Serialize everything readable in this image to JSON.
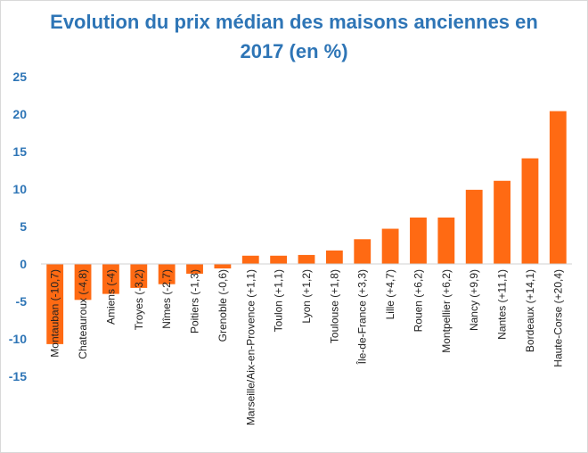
{
  "chart_data": {
    "type": "bar",
    "title_line1": "Evolution du prix médian des maisons anciennes en",
    "title_line2": "2017 (en %)",
    "xlabel": "",
    "ylabel": "",
    "ylim": [
      -15,
      25
    ],
    "yticks": [
      "25",
      "20",
      "15",
      "10",
      "5",
      "0",
      "-5",
      "-10",
      "-15"
    ],
    "ytick_values": [
      25,
      20,
      15,
      10,
      5,
      0,
      -5,
      -10,
      -15
    ],
    "grid": false,
    "bar_color": "#ff6a13",
    "categories": [
      "Montauban (-10,7)",
      "Chateauroux (-4,8)",
      "Amiens (-4)",
      "Troyes (-3,2)",
      "Nîmes (-2,7)",
      "Poitiers (-1,3)",
      "Grenoble (-0,6)",
      "Marseille/Aix-en-Provence (+1,1)",
      "Toulon (+1,1)",
      "Lyon (+1,2)",
      "Toulouse (+1,8)",
      "Île-de-France (+3,3)",
      "Lille (+4,7)",
      "Rouen (+6,2)",
      "Montpellier (+6,2)",
      "Nancy (+9,9)",
      "Nantes (+11,1)",
      "Bordeaux (+14,1)",
      "Haute-Corse (+20,4)"
    ],
    "values": [
      -10.7,
      -4.8,
      -4,
      -3.2,
      -2.7,
      -1.3,
      -0.6,
      1.1,
      1.1,
      1.2,
      1.8,
      3.3,
      4.7,
      6.2,
      6.2,
      9.9,
      11.1,
      14.1,
      20.4
    ]
  }
}
